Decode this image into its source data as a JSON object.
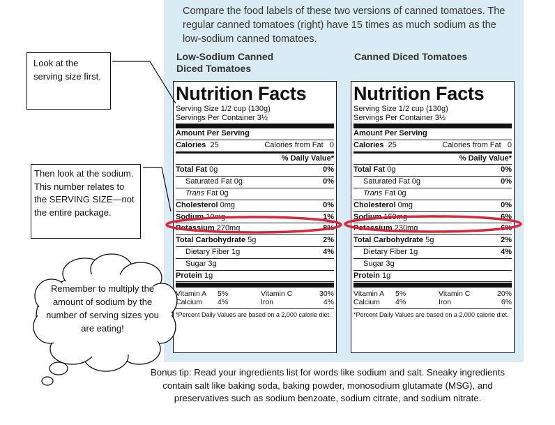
{
  "intro": "Compare the food labels of these two versions of canned tomatoes. The regular canned tomatoes (right) have 15 times as much sodium as the low-sodium canned tomatoes.",
  "left_heading": [
    "Low-Sodium Canned",
    "Diced Tomatoes"
  ],
  "right_heading": "Canned Diced Tomatoes",
  "callouts": {
    "serving": "Look at the serving size first.",
    "sodium": "Then look at the sodium. This number relates to the SERVING SIZE—not the entire package.",
    "cloud": "Remember to multiply the amount of sodium by the number of serving sizes you are eating!"
  },
  "bonus": "Bonus tip: Read your ingredients list for words like sodium and salt. Sneaky ingredients contain salt like baking soda, baking powder, monosodium glutamate (MSG), and preservatives such as sodium benzoate, sodium citrate, and sodium nitrate.",
  "labels": [
    {
      "title": "Nutrition Facts",
      "serving_size": "Serving Size  1/2 cup (130g)",
      "servings_per": "Servings Per Container 3½",
      "amount_per": "Amount Per Serving",
      "calories_label": "Calories",
      "calories": "25",
      "cal_fat_label": "Calories from Fat",
      "cal_fat": "0",
      "dv_header": "% Daily Value*",
      "total_fat_label": "Total Fat",
      "total_fat": "0g",
      "total_fat_dv": "0%",
      "sat_fat": "Saturated Fat 0g",
      "sat_fat_dv": "0%",
      "trans_label": "Trans",
      "trans_rest": " Fat 0g",
      "chol_label": "Cholesterol",
      "chol": "0mg",
      "chol_dv": "0%",
      "sodium_label": "Sodium",
      "sodium": "10mg",
      "sodium_dv": "1%",
      "potassium_label": "Potassium",
      "potassium": "270mg",
      "potassium_dv": "8%",
      "carb_label": "Total Carbohydrate",
      "carb": "5g",
      "carb_dv": "2%",
      "fiber": "Dietary Fiber 1g",
      "fiber_dv": "4%",
      "sugar": "Sugar 3g",
      "protein_label": "Protein",
      "protein": "1g",
      "vit_a": "Vitamin A",
      "vit_a_v": "5%",
      "vit_c": "Vitamin C",
      "vit_c_v": "30%",
      "calcium": "Calcium",
      "calcium_v": "4%",
      "iron": "Iron",
      "iron_v": "4%",
      "footnote": "*Percent Daily Values are based on a 2,000 calorie diet."
    },
    {
      "title": "Nutrition Facts",
      "serving_size": "Serving Size  1/2 cup (130g)",
      "servings_per": "Servings Per Container 3½",
      "amount_per": "Amount Per Serving",
      "calories_label": "Calories",
      "calories": "25",
      "cal_fat_label": "Calories from Fat",
      "cal_fat": "0",
      "dv_header": "% Daily Value*",
      "total_fat_label": "Total Fat",
      "total_fat": "0g",
      "total_fat_dv": "0%",
      "sat_fat": "Saturated Fat 0g",
      "sat_fat_dv": "0%",
      "trans_label": "Trans",
      "trans_rest": " Fat 0g",
      "chol_label": "Cholesterol",
      "chol": "0mg",
      "chol_dv": "0%",
      "sodium_label": "Sodium",
      "sodium": "150mg",
      "sodium_dv": "6%",
      "potassium_label": "Potassium",
      "potassium": "230mg",
      "potassium_dv": "6%",
      "carb_label": "Total Carbohydrate",
      "carb": "5g",
      "carb_dv": "2%",
      "fiber": "Dietary Fiber 1g",
      "fiber_dv": "4%",
      "sugar": "Sugar 3g",
      "protein_label": "Protein",
      "protein": "1g",
      "vit_a": "Vitamin A",
      "vit_a_v": "5%",
      "vit_c": "Vitamin C",
      "vit_c_v": "20%",
      "calcium": "Calcium",
      "calcium_v": "4%",
      "iron": "Iron",
      "iron_v": "6%",
      "footnote": "*Percent Daily Values are based on a 2,000 calorie diet."
    }
  ],
  "colors": {
    "panel": "#d9ecf5",
    "highlight": "#d9263b"
  }
}
